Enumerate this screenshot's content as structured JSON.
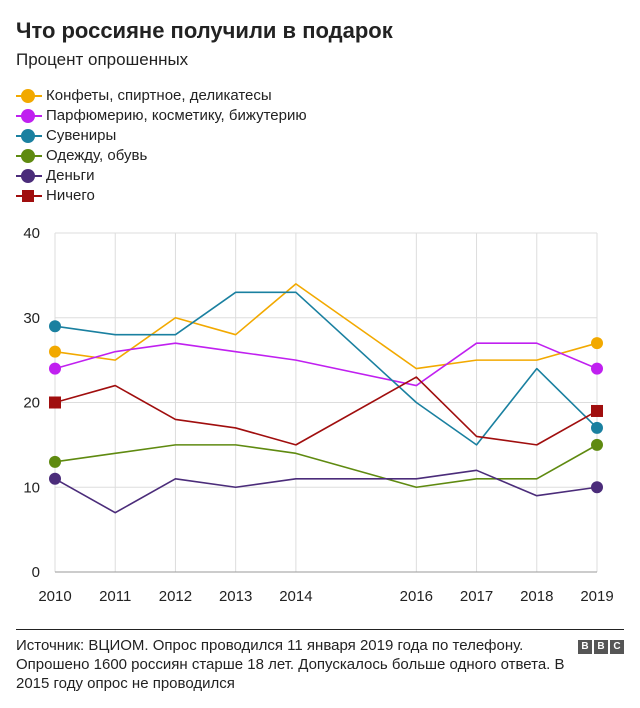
{
  "header": {
    "title": "Что россияне получили в подарок",
    "subtitle": "Процент опрошенных"
  },
  "chart_data": {
    "type": "line",
    "title": "Что россияне получили в подарок",
    "subtitle": "Процент опрошенных",
    "xlabel": "",
    "ylabel": "",
    "ylim": [
      0,
      40
    ],
    "yticks": [
      0,
      10,
      20,
      30,
      40
    ],
    "grid": true,
    "legend_position": "top-left",
    "x": [
      2010,
      2011,
      2012,
      2013,
      2014,
      2016,
      2017,
      2018,
      2019
    ],
    "x_tick_labels": [
      "2010",
      "2011",
      "2012",
      "2013",
      "2014",
      "2016",
      "2017",
      "2018",
      "2019"
    ],
    "marker_years": [
      2010,
      2019
    ],
    "series": [
      {
        "name": "Конфеты, спиртное, деликатесы",
        "color": "#f2a900",
        "marker": "circle",
        "values": [
          26,
          25,
          30,
          28,
          34,
          24,
          25,
          25,
          27
        ]
      },
      {
        "name": "Парфюмерию, косметику, бижутерию",
        "color": "#c020f0",
        "marker": "circle",
        "values": [
          24,
          26,
          27,
          26,
          25,
          22,
          27,
          27,
          24
        ]
      },
      {
        "name": "Сувениры",
        "color": "#1a80a0",
        "marker": "circle",
        "values": [
          29,
          28,
          28,
          33,
          33,
          20,
          15,
          24,
          17
        ]
      },
      {
        "name": "Одежду, обувь",
        "color": "#5f8a10",
        "marker": "circle",
        "values": [
          13,
          14,
          15,
          15,
          14,
          10,
          11,
          11,
          15
        ]
      },
      {
        "name": "Деньги",
        "color": "#4b2c7a",
        "marker": "circle",
        "values": [
          11,
          7,
          11,
          10,
          11,
          11,
          12,
          9,
          10
        ]
      },
      {
        "name": "Ничего",
        "color": "#a00e0e",
        "marker": "square",
        "values": [
          20,
          22,
          18,
          17,
          15,
          23,
          16,
          15,
          19
        ]
      }
    ]
  },
  "footer": {
    "source": "Источник: ВЦИОМ. Опрос проводился 11 января 2019 года по телефону. Опрошено 1600 россиян старше 18 лет. Допускалось больше одного ответа. В 2015 году опрос не проводился",
    "logo_letters": [
      "B",
      "B",
      "C"
    ]
  }
}
